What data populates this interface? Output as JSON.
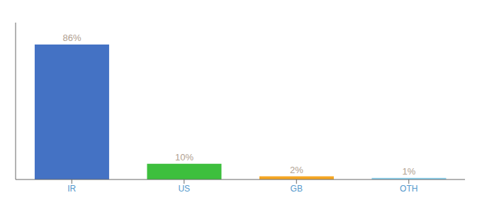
{
  "chart_data": {
    "type": "bar",
    "categories": [
      "IR",
      "US",
      "GB",
      "OTH"
    ],
    "values": [
      86,
      10,
      2,
      1
    ],
    "value_labels": [
      "86%",
      "10%",
      "2%",
      "1%"
    ],
    "colors": [
      "#4472c4",
      "#3dbf3d",
      "#f5a623",
      "#87ceeb"
    ],
    "ylim": [
      0,
      100
    ],
    "data_labels": true,
    "tick_labels": "x",
    "grid": false
  }
}
